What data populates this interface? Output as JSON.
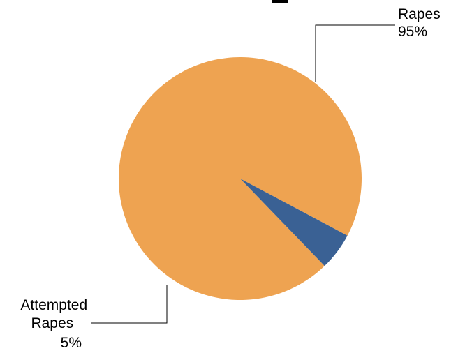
{
  "chart_data": {
    "type": "pie",
    "slices": [
      {
        "label_lines": [
          "Rapes"
        ],
        "percent_label": "95%",
        "value": 95,
        "color": "#EEA351"
      },
      {
        "label_lines": [
          "Attempted",
          "Rapes"
        ],
        "percent_label": "5%",
        "value": 5,
        "color": "#3A6194"
      }
    ],
    "legend": "none",
    "data_labels": "outside with leader lines"
  }
}
